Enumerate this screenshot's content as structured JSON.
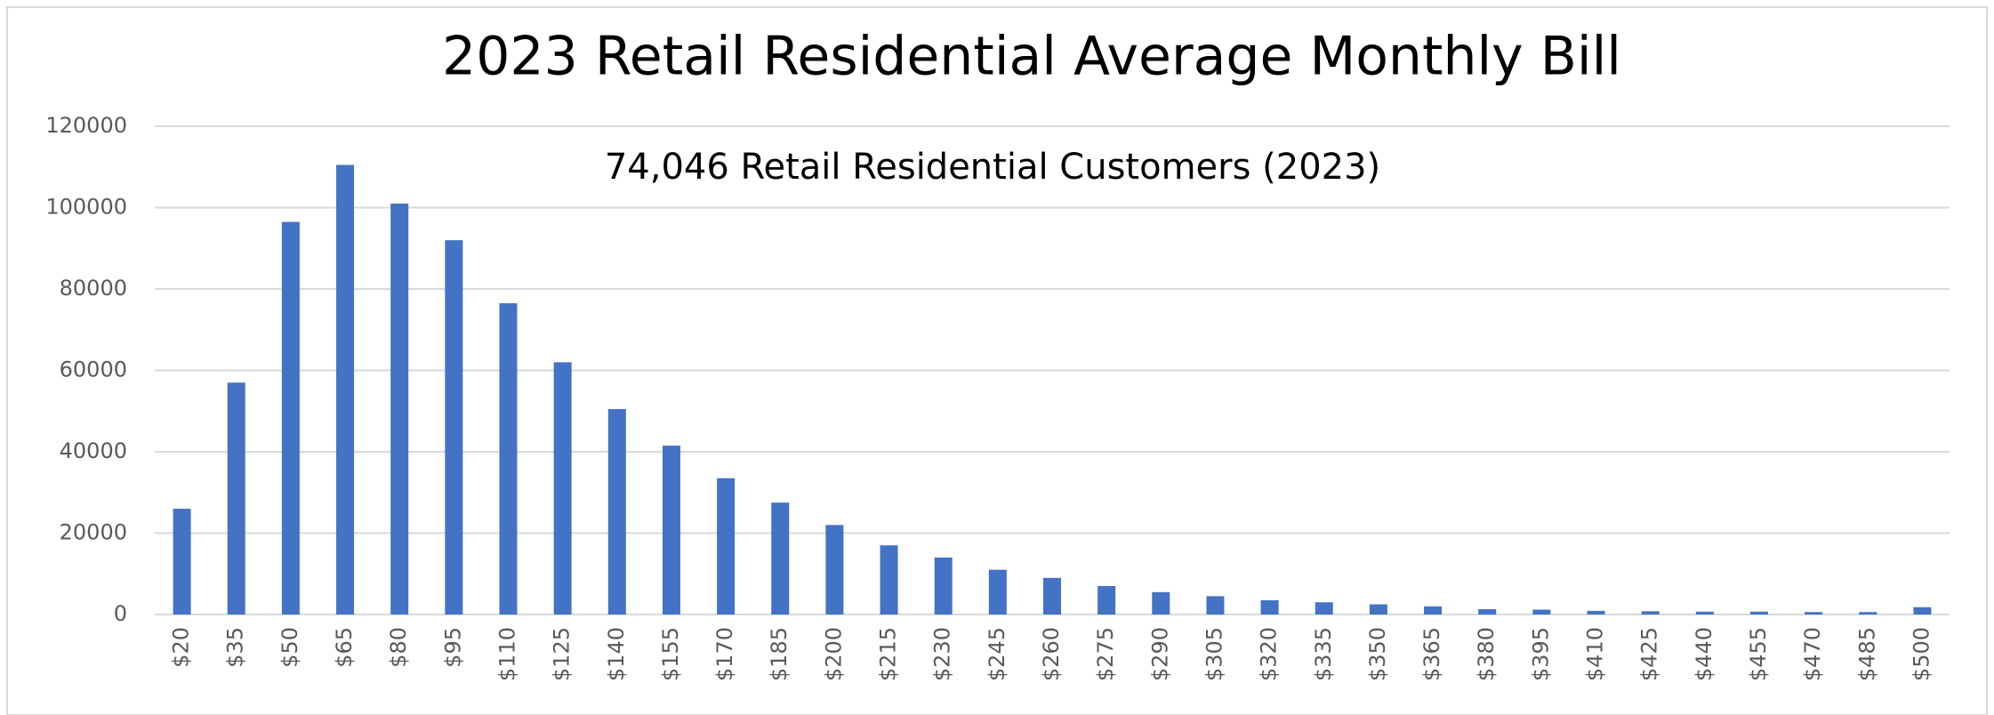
{
  "chart_data": {
    "type": "bar",
    "title": "2023 Retail Residential Average Monthly Bill",
    "subtitle": "74,046 Retail Residential Customers (2023)",
    "categories": [
      "$20",
      "$35",
      "$50",
      "$65",
      "$80",
      "$95",
      "$110",
      "$125",
      "$140",
      "$155",
      "$170",
      "$185",
      "$200",
      "$215",
      "$230",
      "$245",
      "$260",
      "$275",
      "$290",
      "$305",
      "$320",
      "$335",
      "$350",
      "$365",
      "$380",
      "$395",
      "$410",
      "$425",
      "$440",
      "$455",
      "$470",
      "$485",
      "$500"
    ],
    "values": [
      26000,
      57000,
      96500,
      110500,
      101000,
      92000,
      76500,
      62000,
      50500,
      41500,
      33500,
      27500,
      22000,
      17000,
      14000,
      11000,
      9000,
      7000,
      5500,
      4500,
      3500,
      3000,
      2500,
      2000,
      1300,
      1200,
      900,
      800,
      700,
      700,
      600,
      600,
      1800
    ],
    "color": "#4472c4",
    "ylim": [
      0,
      120000
    ],
    "yticks": [
      0,
      20000,
      40000,
      60000,
      80000,
      100000,
      120000
    ],
    "grid": true
  }
}
